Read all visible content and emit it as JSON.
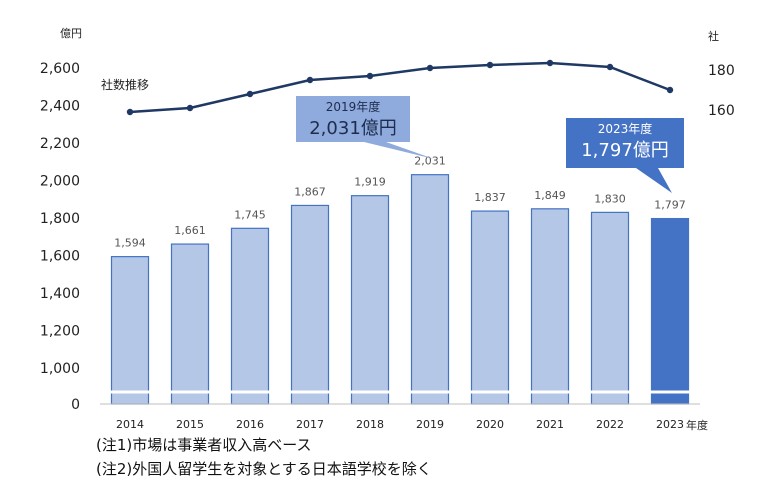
{
  "chart_data": {
    "type": "bar",
    "categories": [
      "2014",
      "2015",
      "2016",
      "2017",
      "2018",
      "2019",
      "2020",
      "2021",
      "2022",
      "2023"
    ],
    "series": [
      {
        "values": [
          1594,
          1661,
          1745,
          1867,
          1919,
          2031,
          1837,
          1849,
          1830,
          1797
        ]
      }
    ],
    "y_unit": "億円",
    "y_ticks": [
      "0",
      "1,000",
      "1,200",
      "1,400",
      "1,600",
      "1,800",
      "2,000",
      "2,200",
      "2,400",
      "2,600"
    ],
    "y_range": [
      1000,
      2600
    ],
    "axis_break": true,
    "x_unit": "年度",
    "value_labels": [
      "1,594",
      "1,661",
      "1,745",
      "1,867",
      "1,919",
      "2,031",
      "1,837",
      "1,849",
      "1,830",
      "1,797"
    ],
    "highlight_index": 9,
    "colors": {
      "bar": "#b4c7e7",
      "bar_border": "#4472c4",
      "highlight": "#4472c4",
      "line": "#1f3864"
    },
    "line_series": {
      "label": "社数推移",
      "unit": "社",
      "y2_ticks": [
        "160",
        "180"
      ],
      "y2_range": [
        150,
        195
      ],
      "values": [
        159,
        161,
        168,
        175,
        177,
        181,
        182.5,
        183.5,
        181.5,
        170
      ]
    },
    "callouts": [
      {
        "index": 5,
        "line1": "2019年度",
        "line2": "2,031億円",
        "color": "#8faadc"
      },
      {
        "index": 9,
        "line1": "2023年度",
        "line2": "1,797億円",
        "color": "#4472c4"
      }
    ]
  },
  "notes": [
    "(注1)市場は事業者収入高ベース",
    "(注2)外国人留学生を対象とする日本語学校を除く"
  ]
}
